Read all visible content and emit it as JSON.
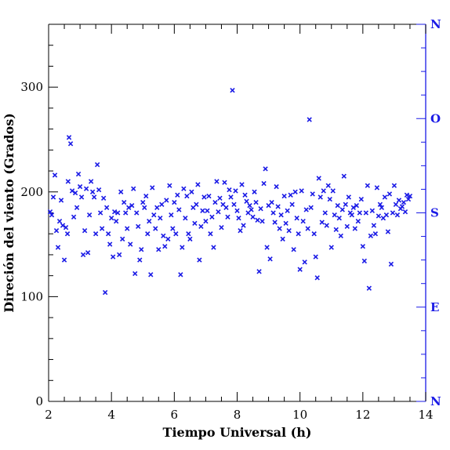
{
  "chart_data": {
    "type": "scatter",
    "xlabel": "Tiempo Universal (h)",
    "ylabel": "Direción del viento (Grados)",
    "xlim": [
      2,
      14
    ],
    "ylim": [
      0,
      360
    ],
    "x_ticks": [
      "2",
      "4",
      "6",
      "8",
      "10",
      "12",
      "14"
    ],
    "y_ticks": [
      "0",
      "100",
      "200",
      "300"
    ],
    "right_axis_labels": [
      {
        "label": "N",
        "value": 360
      },
      {
        "label": "O",
        "value": 270
      },
      {
        "label": "S",
        "value": 180
      },
      {
        "label": "E",
        "value": 90
      },
      {
        "label": "N",
        "value": 0
      }
    ],
    "series": [
      {
        "marker": "x",
        "color": "#1a1ae6",
        "points": [
          [
            2.05,
            181
          ],
          [
            2.1,
            178
          ],
          [
            2.15,
            195
          ],
          [
            2.2,
            216
          ],
          [
            2.25,
            163
          ],
          [
            2.3,
            147
          ],
          [
            2.35,
            172
          ],
          [
            2.4,
            192
          ],
          [
            2.45,
            168
          ],
          [
            2.5,
            135
          ],
          [
            2.55,
            166
          ],
          [
            2.6,
            160
          ],
          [
            2.62,
            210
          ],
          [
            2.65,
            252
          ],
          [
            2.7,
            246
          ],
          [
            2.75,
            201
          ],
          [
            2.8,
            176
          ],
          [
            2.85,
            199
          ],
          [
            2.9,
            185
          ],
          [
            2.95,
            217
          ],
          [
            3.0,
            205
          ],
          [
            3.05,
            195
          ],
          [
            3.1,
            140
          ],
          [
            3.15,
            163
          ],
          [
            3.2,
            203
          ],
          [
            3.25,
            142
          ],
          [
            3.3,
            178
          ],
          [
            3.35,
            210
          ],
          [
            3.4,
            200
          ],
          [
            3.45,
            195
          ],
          [
            3.5,
            160
          ],
          [
            3.55,
            226
          ],
          [
            3.6,
            202
          ],
          [
            3.65,
            180
          ],
          [
            3.7,
            165
          ],
          [
            3.75,
            194
          ],
          [
            3.8,
            104
          ],
          [
            3.85,
            185
          ],
          [
            3.9,
            160
          ],
          [
            3.95,
            150
          ],
          [
            4.0,
            175
          ],
          [
            4.05,
            138
          ],
          [
            4.1,
            181
          ],
          [
            4.15,
            172
          ],
          [
            4.2,
            180
          ],
          [
            4.25,
            140
          ],
          [
            4.3,
            200
          ],
          [
            4.35,
            155
          ],
          [
            4.4,
            190
          ],
          [
            4.45,
            180
          ],
          [
            4.5,
            165
          ],
          [
            4.55,
            185
          ],
          [
            4.6,
            150
          ],
          [
            4.65,
            187
          ],
          [
            4.7,
            203
          ],
          [
            4.75,
            122
          ],
          [
            4.8,
            180
          ],
          [
            4.85,
            167
          ],
          [
            4.9,
            135
          ],
          [
            4.95,
            145
          ],
          [
            5.0,
            190
          ],
          [
            5.05,
            185
          ],
          [
            5.1,
            196
          ],
          [
            5.15,
            160
          ],
          [
            5.2,
            172
          ],
          [
            5.25,
            121
          ],
          [
            5.3,
            204
          ],
          [
            5.35,
            178
          ],
          [
            5.4,
            165
          ],
          [
            5.45,
            185
          ],
          [
            5.5,
            145
          ],
          [
            5.55,
            175
          ],
          [
            5.6,
            188
          ],
          [
            5.65,
            158
          ],
          [
            5.7,
            148
          ],
          [
            5.75,
            192
          ],
          [
            5.8,
            155
          ],
          [
            5.85,
            206
          ],
          [
            5.9,
            178
          ],
          [
            5.95,
            165
          ],
          [
            6.0,
            190
          ],
          [
            6.05,
            160
          ],
          [
            6.1,
            197
          ],
          [
            6.15,
            183
          ],
          [
            6.2,
            121
          ],
          [
            6.25,
            147
          ],
          [
            6.3,
            203
          ],
          [
            6.35,
            175
          ],
          [
            6.4,
            196
          ],
          [
            6.45,
            160
          ],
          [
            6.5,
            155
          ],
          [
            6.55,
            200
          ],
          [
            6.6,
            185
          ],
          [
            6.65,
            170
          ],
          [
            6.7,
            188
          ],
          [
            6.75,
            207
          ],
          [
            6.8,
            135
          ],
          [
            6.85,
            167
          ],
          [
            6.9,
            182
          ],
          [
            6.95,
            195
          ],
          [
            7.0,
            172
          ],
          [
            7.05,
            182
          ],
          [
            7.1,
            196
          ],
          [
            7.15,
            160
          ],
          [
            7.2,
            176
          ],
          [
            7.25,
            147
          ],
          [
            7.3,
            190
          ],
          [
            7.35,
            210
          ],
          [
            7.4,
            181
          ],
          [
            7.45,
            194
          ],
          [
            7.5,
            166
          ],
          [
            7.55,
            188
          ],
          [
            7.6,
            209
          ],
          [
            7.65,
            185
          ],
          [
            7.7,
            176
          ],
          [
            7.75,
            202
          ],
          [
            7.8,
            195
          ],
          [
            7.85,
            297
          ],
          [
            7.9,
            188
          ],
          [
            7.95,
            201
          ],
          [
            8.0,
            182
          ],
          [
            8.05,
            175
          ],
          [
            8.1,
            163
          ],
          [
            8.15,
            207
          ],
          [
            8.2,
            168
          ],
          [
            8.25,
            197
          ],
          [
            8.3,
            191
          ],
          [
            8.35,
            180
          ],
          [
            8.4,
            187
          ],
          [
            8.45,
            183
          ],
          [
            8.5,
            176
          ],
          [
            8.55,
            200
          ],
          [
            8.6,
            190
          ],
          [
            8.65,
            173
          ],
          [
            8.7,
            124
          ],
          [
            8.75,
            184
          ],
          [
            8.8,
            172
          ],
          [
            8.85,
            208
          ],
          [
            8.9,
            222
          ],
          [
            8.95,
            147
          ],
          [
            9.0,
            187
          ],
          [
            9.05,
            136
          ],
          [
            9.1,
            190
          ],
          [
            9.15,
            180
          ],
          [
            9.2,
            171
          ],
          [
            9.25,
            205
          ],
          [
            9.3,
            186
          ],
          [
            9.35,
            165
          ],
          [
            9.4,
            178
          ],
          [
            9.45,
            155
          ],
          [
            9.5,
            196
          ],
          [
            9.55,
            170
          ],
          [
            9.6,
            182
          ],
          [
            9.65,
            163
          ],
          [
            9.7,
            197
          ],
          [
            9.75,
            188
          ],
          [
            9.8,
            145
          ],
          [
            9.85,
            200
          ],
          [
            9.9,
            175
          ],
          [
            9.95,
            160
          ],
          [
            10.0,
            126
          ],
          [
            10.05,
            201
          ],
          [
            10.1,
            172
          ],
          [
            10.15,
            133
          ],
          [
            10.2,
            183
          ],
          [
            10.25,
            165
          ],
          [
            10.3,
            269
          ],
          [
            10.35,
            185
          ],
          [
            10.4,
            198
          ],
          [
            10.45,
            160
          ],
          [
            10.5,
            138
          ],
          [
            10.55,
            118
          ],
          [
            10.6,
            213
          ],
          [
            10.65,
            195
          ],
          [
            10.7,
            171
          ],
          [
            10.75,
            201
          ],
          [
            10.8,
            180
          ],
          [
            10.85,
            168
          ],
          [
            10.9,
            206
          ],
          [
            10.95,
            193
          ],
          [
            11.0,
            147
          ],
          [
            11.05,
            201
          ],
          [
            11.1,
            178
          ],
          [
            11.15,
            164
          ],
          [
            11.2,
            187
          ],
          [
            11.25,
            175
          ],
          [
            11.3,
            158
          ],
          [
            11.35,
            183
          ],
          [
            11.4,
            215
          ],
          [
            11.45,
            188
          ],
          [
            11.5,
            167
          ],
          [
            11.55,
            195
          ],
          [
            11.6,
            180
          ],
          [
            11.65,
            178
          ],
          [
            11.7,
            185
          ],
          [
            11.75,
            165
          ],
          [
            11.8,
            187
          ],
          [
            11.85,
            172
          ],
          [
            11.9,
            180
          ],
          [
            11.95,
            193
          ],
          [
            12.0,
            148
          ],
          [
            12.05,
            134
          ],
          [
            12.1,
            180
          ],
          [
            12.15,
            206
          ],
          [
            12.2,
            108
          ],
          [
            12.25,
            158
          ],
          [
            12.3,
            182
          ],
          [
            12.35,
            168
          ],
          [
            12.4,
            160
          ],
          [
            12.45,
            204
          ],
          [
            12.5,
            177
          ],
          [
            12.55,
            188
          ],
          [
            12.6,
            185
          ],
          [
            12.65,
            175
          ],
          [
            12.7,
            195
          ],
          [
            12.75,
            178
          ],
          [
            12.8,
            162
          ],
          [
            12.85,
            198
          ],
          [
            12.9,
            131
          ],
          [
            12.95,
            180
          ],
          [
            13.0,
            206
          ],
          [
            13.05,
            188
          ],
          [
            13.1,
            178
          ],
          [
            13.15,
            192
          ],
          [
            13.2,
            184
          ],
          [
            13.25,
            186
          ],
          [
            13.3,
            190
          ],
          [
            13.35,
            181
          ],
          [
            13.4,
            197
          ],
          [
            13.45,
            193
          ],
          [
            13.5,
            196
          ]
        ]
      }
    ]
  }
}
